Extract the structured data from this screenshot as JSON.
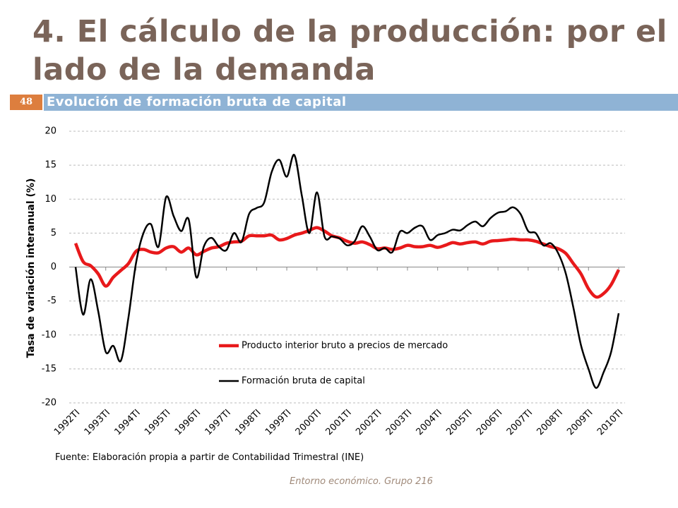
{
  "slide": {
    "title_lines": [
      "4. El cálculo de la producción: por el",
      "lado de la demanda"
    ],
    "number": "48",
    "subtitle": "Evolución de formación bruta de capital",
    "source": "Fuente: Elaboración propia a partir de Contabilidad Trimestral (INE)",
    "footer": "Entorno económico. Grupo 216"
  },
  "chart_data": {
    "type": "line",
    "y_label": "Tasa de variación interanual (%)",
    "categories": [
      "1992TI",
      null,
      null,
      null,
      "1993TI",
      null,
      null,
      null,
      "1994TI",
      null,
      null,
      null,
      "1995TI",
      null,
      null,
      null,
      "1996TI",
      null,
      null,
      null,
      "1997TI",
      null,
      null,
      null,
      "1998TI",
      null,
      null,
      null,
      "1999TI",
      null,
      null,
      null,
      "2000TI",
      null,
      null,
      null,
      "2001TI",
      null,
      null,
      null,
      "2002TI",
      null,
      null,
      null,
      "2003TI",
      null,
      null,
      null,
      "2004TI",
      null,
      null,
      null,
      "2005TI",
      null,
      null,
      null,
      "2006TI",
      null,
      null,
      null,
      "2007TI",
      null,
      null,
      null,
      "2008TI",
      null,
      null,
      null,
      "2009TI",
      null,
      null,
      null,
      "2010TI"
    ],
    "series": [
      {
        "name": "Producto interior bruto a precios de mercado",
        "color": "#e8191b",
        "values": [
          3.5,
          0.8,
          0.2,
          -1.0,
          -2.8,
          -1.5,
          -0.5,
          0.5,
          2.3,
          2.6,
          2.2,
          2.1,
          2.8,
          3.0,
          2.2,
          2.8,
          1.8,
          2.3,
          2.8,
          3.0,
          3.5,
          3.7,
          3.8,
          4.6,
          4.6,
          4.6,
          4.7,
          4.0,
          4.2,
          4.7,
          5.0,
          5.4,
          5.8,
          5.3,
          4.6,
          4.3,
          3.8,
          3.5,
          3.7,
          3.3,
          2.7,
          2.8,
          2.6,
          2.8,
          3.2,
          3.0,
          3.0,
          3.2,
          2.9,
          3.2,
          3.6,
          3.4,
          3.6,
          3.7,
          3.4,
          3.8,
          3.9,
          4.0,
          4.1,
          4.0,
          4.0,
          3.8,
          3.4,
          3.0,
          2.7,
          2.0,
          0.5,
          -1.0,
          -3.2,
          -4.4,
          -3.9,
          -2.6,
          -0.4
        ]
      },
      {
        "name": "Formación bruta de capital",
        "color": "#000000",
        "values": [
          0,
          -7.0,
          -1.8,
          -6.5,
          -12.5,
          -11.6,
          -13.8,
          -7.5,
          0.5,
          5.0,
          6.3,
          3.0,
          10.3,
          7.5,
          5.3,
          7.0,
          -1.5,
          3.0,
          4.3,
          3.0,
          2.5,
          5.0,
          3.7,
          7.8,
          8.7,
          9.5,
          14.0,
          15.8,
          13.3,
          16.5,
          10.5,
          5.0,
          11.0,
          4.5,
          4.5,
          4.2,
          3.2,
          3.8,
          6.0,
          4.5,
          2.5,
          2.8,
          2.2,
          5.2,
          5.0,
          5.8,
          6.0,
          4.0,
          4.7,
          5.0,
          5.5,
          5.4,
          6.2,
          6.7,
          6.0,
          7.2,
          8.0,
          8.2,
          8.8,
          7.8,
          5.3,
          5.0,
          3.2,
          3.5,
          2.0,
          -1.0,
          -6.0,
          -11.5,
          -15.0,
          -17.8,
          -15.5,
          -12.5,
          -6.8
        ]
      }
    ],
    "ylim": [
      -20,
      20
    ],
    "yticks": [
      -20,
      -15,
      -10,
      -5,
      0,
      5,
      10,
      15,
      20
    ],
    "grid": true,
    "legend": "center"
  }
}
